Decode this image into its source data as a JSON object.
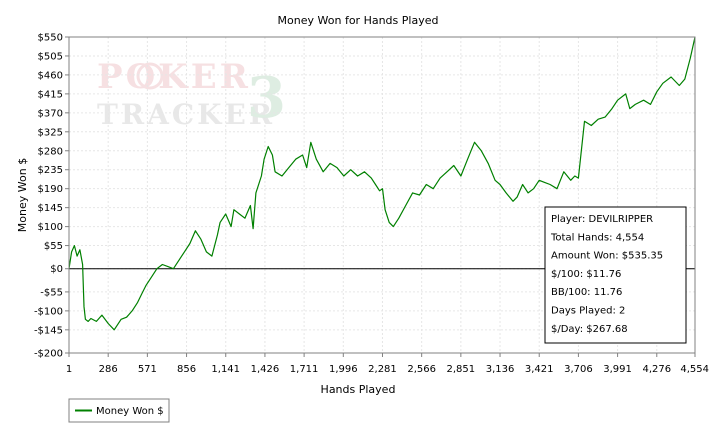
{
  "chart_data": {
    "type": "line",
    "title": "Money Won for Hands Played",
    "xlabel": "Hands Played",
    "ylabel": "Money Won $",
    "xlim": [
      1,
      4554
    ],
    "ylim": [
      -200,
      550
    ],
    "x_ticks": [
      1,
      286,
      571,
      856,
      1141,
      1426,
      1711,
      1996,
      2281,
      2566,
      2851,
      3136,
      3421,
      3706,
      3991,
      4276,
      4554
    ],
    "x_tick_labels": [
      "1",
      "286",
      "571",
      "856",
      "1,141",
      "1,426",
      "1,711",
      "1,996",
      "2,281",
      "2,566",
      "2,851",
      "3,136",
      "3,421",
      "3,706",
      "3,991",
      "4,276",
      "4,554"
    ],
    "y_ticks": [
      -200,
      -145,
      -100,
      -55,
      0,
      55,
      100,
      145,
      190,
      235,
      280,
      325,
      370,
      415,
      460,
      505,
      550
    ],
    "y_tick_labels": [
      "-$200",
      "-$145",
      "-$100",
      "-$55",
      "$0",
      "$55",
      "$100",
      "$145",
      "$190",
      "$235",
      "$280",
      "$325",
      "$370",
      "$415",
      "$460",
      "$505",
      "$550"
    ],
    "grid": true,
    "legend_position": "bottom-left",
    "series": [
      {
        "name": "Money Won $",
        "color": "#008000",
        "x": [
          1,
          20,
          40,
          60,
          80,
          100,
          110,
          120,
          140,
          160,
          200,
          240,
          286,
          330,
          380,
          420,
          460,
          500,
          530,
          560,
          600,
          640,
          680,
          720,
          760,
          800,
          840,
          880,
          920,
          960,
          1000,
          1040,
          1080,
          1100,
          1141,
          1180,
          1200,
          1240,
          1280,
          1320,
          1340,
          1360,
          1400,
          1420,
          1450,
          1480,
          1500,
          1550,
          1600,
          1650,
          1700,
          1730,
          1760,
          1800,
          1850,
          1900,
          1950,
          2000,
          2050,
          2100,
          2150,
          2200,
          2230,
          2260,
          2281,
          2300,
          2330,
          2360,
          2400,
          2450,
          2500,
          2550,
          2600,
          2650,
          2700,
          2750,
          2800,
          2851,
          2900,
          2950,
          3000,
          3050,
          3100,
          3136,
          3180,
          3230,
          3260,
          3300,
          3340,
          3380,
          3421,
          3460,
          3500,
          3550,
          3600,
          3650,
          3680,
          3706,
          3750,
          3800,
          3850,
          3900,
          3950,
          3991,
          4050,
          4080,
          4120,
          4180,
          4230,
          4276,
          4320,
          4380,
          4440,
          4480,
          4520,
          4554
        ],
        "y": [
          0,
          40,
          55,
          30,
          45,
          10,
          -90,
          -120,
          -125,
          -118,
          -125,
          -110,
          -130,
          -145,
          -120,
          -115,
          -100,
          -80,
          -60,
          -40,
          -20,
          0,
          10,
          5,
          0,
          20,
          40,
          60,
          90,
          70,
          40,
          30,
          80,
          110,
          130,
          100,
          140,
          130,
          120,
          150,
          95,
          180,
          220,
          260,
          290,
          270,
          230,
          220,
          240,
          260,
          270,
          240,
          300,
          260,
          230,
          250,
          240,
          220,
          235,
          220,
          230,
          215,
          200,
          185,
          190,
          140,
          110,
          100,
          120,
          150,
          180,
          175,
          200,
          190,
          215,
          230,
          245,
          220,
          260,
          300,
          280,
          250,
          210,
          200,
          180,
          160,
          170,
          200,
          180,
          190,
          210,
          205,
          200,
          190,
          230,
          210,
          220,
          215,
          350,
          340,
          355,
          360,
          380,
          400,
          415,
          380,
          390,
          400,
          390,
          420,
          440,
          455,
          435,
          450,
          500,
          550
        ]
      }
    ],
    "info_box": {
      "lines": [
        "Player: DEVILRIPPER",
        "Total Hands: 4,554",
        "Amount Won: $535.35",
        "$/100: $11.76",
        "BB/100: 11.76",
        "Days Played: 2",
        "$/Day: $267.68"
      ]
    },
    "watermark": {
      "line1": "POKER",
      "line2": "TRACKER",
      "number": "3"
    }
  }
}
